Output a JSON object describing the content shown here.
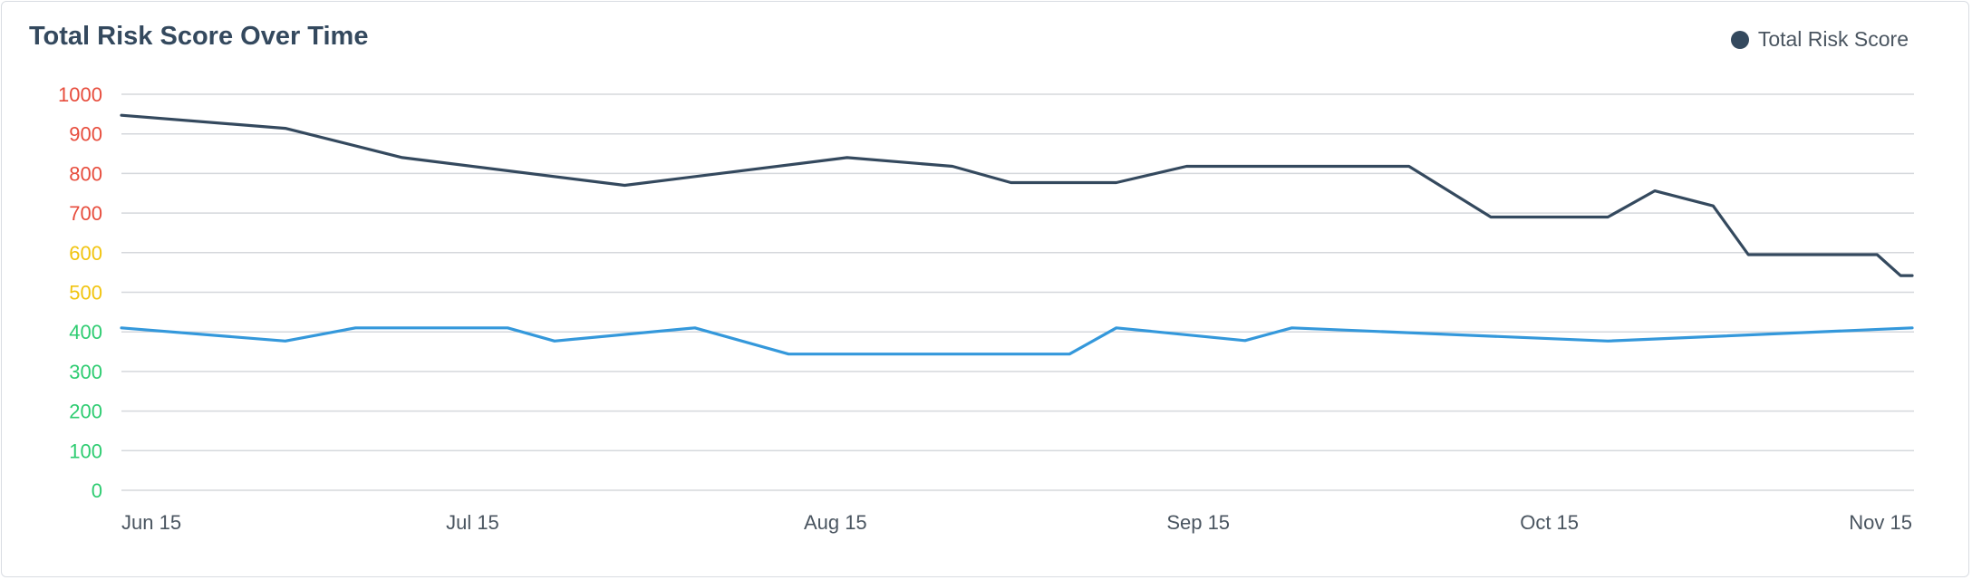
{
  "chart_data": {
    "type": "line",
    "title": "Total Risk Score Over Time",
    "xlabel": "",
    "ylabel": "",
    "ylim": [
      0,
      1000
    ],
    "yticks": [
      0,
      100,
      200,
      300,
      400,
      500,
      600,
      700,
      800,
      900,
      1000
    ],
    "ytick_colors": {
      "green": "#2ecc71",
      "yellow": "#f1c40f",
      "red": "#e74c3c"
    },
    "xlim": [
      "2021-06-15",
      "2021-11-15"
    ],
    "xticks": [
      {
        "label": "Jun 15",
        "date": "2021-06-15"
      },
      {
        "label": "Jul 15",
        "date": "2021-07-15"
      },
      {
        "label": "Aug 15",
        "date": "2021-08-15"
      },
      {
        "label": "Sep 15",
        "date": "2021-09-15"
      },
      {
        "label": "Oct 15",
        "date": "2021-10-15"
      },
      {
        "label": "Nov 15",
        "date": "2021-11-15"
      }
    ],
    "grid": true,
    "legend_position": "top-right",
    "series": [
      {
        "name": "Total Risk Score",
        "color": "#34495e",
        "in_legend": true,
        "points": [
          [
            "2021-06-15",
            947
          ],
          [
            "2021-06-29",
            914
          ],
          [
            "2021-07-09",
            840
          ],
          [
            "2021-07-28",
            770
          ],
          [
            "2021-08-16",
            840
          ],
          [
            "2021-08-25",
            818
          ],
          [
            "2021-08-30",
            777
          ],
          [
            "2021-09-08",
            777
          ],
          [
            "2021-09-14",
            818
          ],
          [
            "2021-10-03",
            818
          ],
          [
            "2021-10-10",
            690
          ],
          [
            "2021-10-20",
            690
          ],
          [
            "2021-10-24",
            756
          ],
          [
            "2021-10-29",
            718
          ],
          [
            "2021-11-01",
            595
          ],
          [
            "2021-11-12",
            595
          ],
          [
            "2021-11-14",
            542
          ],
          [
            "2021-11-20",
            542
          ]
        ]
      },
      {
        "name": "",
        "color": "#3498db",
        "in_legend": false,
        "points": [
          [
            "2021-06-15",
            410
          ],
          [
            "2021-06-29",
            377
          ],
          [
            "2021-07-05",
            410
          ],
          [
            "2021-07-18",
            410
          ],
          [
            "2021-07-22",
            377
          ],
          [
            "2021-08-03",
            410
          ],
          [
            "2021-08-11",
            344
          ],
          [
            "2021-09-04",
            344
          ],
          [
            "2021-09-08",
            410
          ],
          [
            "2021-09-19",
            378
          ],
          [
            "2021-09-23",
            410
          ],
          [
            "2021-10-20",
            377
          ],
          [
            "2021-11-20",
            410
          ]
        ]
      }
    ]
  },
  "legend": {
    "label": "Total Risk Score",
    "color": "#34495e"
  },
  "colors": {
    "grid": "#d5d8dc",
    "title": "#34495e",
    "axis_text": "#4a5560"
  }
}
